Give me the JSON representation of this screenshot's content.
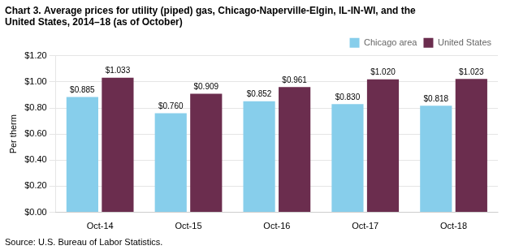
{
  "chart_data": {
    "type": "bar",
    "title": "Chart 3. Average prices for utility (piped) gas, Chicago-Naperville-Elgin, IL-IN-WI, and the\nUnited States, 2014–18 (as of October)",
    "ylabel": "Per therm",
    "annotations": [
      "Source: U.S. Bureau of Labor Statistics."
    ],
    "categories": [
      "Oct-14",
      "Oct-15",
      "Oct-16",
      "Oct-17",
      "Oct-18"
    ],
    "series": [
      {
        "name": "Chicago area",
        "color": "#87CEEB",
        "values": [
          0.885,
          0.76,
          0.852,
          0.83,
          0.818
        ],
        "value_labels": [
          "$0.885",
          "$0.760",
          "$0.852",
          "$0.830",
          "$0.818"
        ]
      },
      {
        "name": "United States",
        "color": "#6B2D4E",
        "values": [
          1.033,
          0.909,
          0.961,
          1.02,
          1.023
        ],
        "value_labels": [
          "$1.033",
          "$0.909",
          "$0.961",
          "$1.020",
          "$1.023"
        ]
      }
    ],
    "ylim": [
      0.0,
      1.2
    ],
    "yticks": [
      {
        "value": 0.0,
        "label": "$0.00"
      },
      {
        "value": 0.2,
        "label": "$0.20"
      },
      {
        "value": 0.4,
        "label": "$0.40"
      },
      {
        "value": 0.6,
        "label": "$0.60"
      },
      {
        "value": 0.8,
        "label": "$0.80"
      },
      {
        "value": 1.0,
        "label": "$1.00"
      },
      {
        "value": 1.2,
        "label": "$1.20"
      }
    ],
    "grid": true,
    "legend": "upper right",
    "data_labels": true
  }
}
